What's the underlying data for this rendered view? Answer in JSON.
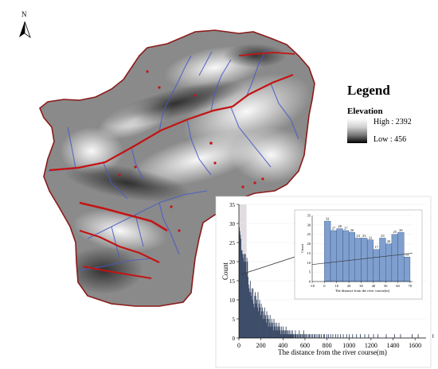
{
  "north_label": "N",
  "legend": {
    "title": "Legend",
    "layer": "Elevation",
    "high": "High : 2392",
    "low": "Low : 456"
  },
  "colors": {
    "boundary": "#8b1a1a",
    "river": "#4a5ac8",
    "points": "#c41414",
    "bars": "#3a4a66",
    "inset_bars": "#7f9fcf"
  },
  "chart_data": [
    {
      "type": "bar",
      "xlabel": "The distance from the river course(m)",
      "ylabel": "Count",
      "xlim": [
        0,
        1700
      ],
      "ylim": [
        0,
        35
      ],
      "xticks": [
        0,
        200,
        400,
        600,
        800,
        1000,
        1200,
        1400,
        1600
      ],
      "yticks": [
        0,
        5,
        10,
        15,
        20,
        25,
        30,
        35
      ],
      "bin_width": 5,
      "values": [
        29,
        28,
        27,
        26,
        23,
        23,
        22,
        21,
        22,
        20,
        22,
        22,
        20,
        17,
        21,
        20,
        16,
        14,
        13,
        12,
        15,
        12,
        11,
        13,
        10,
        13,
        9,
        8,
        11,
        12,
        11,
        9,
        10,
        8,
        12,
        7,
        9,
        10,
        8,
        6,
        9,
        7,
        8,
        5,
        7,
        6,
        8,
        5,
        6,
        4,
        7,
        5,
        6,
        3,
        5,
        4,
        6,
        3,
        4,
        5,
        3,
        4,
        2,
        5,
        3,
        4,
        3,
        2,
        4,
        3,
        2,
        3,
        4,
        2,
        3,
        1,
        2,
        3,
        2,
        1,
        3,
        2,
        2,
        1,
        2,
        3,
        1,
        2,
        1,
        2,
        1,
        2,
        1,
        1,
        2,
        1,
        1,
        2,
        1,
        1,
        0,
        1,
        2,
        1,
        0,
        1,
        1,
        0,
        1,
        2,
        0,
        1,
        1,
        0,
        1,
        0,
        1,
        2,
        0,
        1,
        0,
        1,
        1,
        0,
        0,
        1,
        0,
        1,
        1,
        0,
        0,
        1,
        0,
        1,
        0,
        0,
        1,
        0,
        1,
        0,
        0,
        1,
        0,
        0,
        1,
        0,
        1,
        0,
        0,
        1,
        0,
        0,
        0,
        1,
        0,
        1,
        0,
        0,
        0,
        1,
        0,
        0,
        1,
        0,
        0,
        0,
        1,
        0,
        0,
        0,
        1,
        0,
        0,
        0,
        0,
        1,
        0,
        0,
        0,
        1,
        0,
        0,
        0,
        0,
        1,
        0,
        0,
        0,
        0,
        1,
        0,
        0,
        0,
        0,
        0,
        1,
        0,
        0,
        0,
        0,
        1,
        0,
        0,
        0,
        0,
        0,
        1,
        0,
        0,
        0,
        0,
        0,
        0,
        1,
        0,
        0,
        0,
        0,
        0,
        0,
        1,
        0,
        0,
        0,
        0,
        0,
        0,
        0,
        1,
        0,
        0,
        0,
        0,
        0,
        0,
        1,
        0,
        0,
        0,
        0,
        0,
        0,
        0,
        0,
        1,
        0,
        0,
        0,
        0,
        0,
        0,
        0,
        1,
        0,
        0,
        0,
        0,
        0,
        0,
        0,
        0,
        0,
        0,
        0,
        0,
        0,
        0,
        1,
        0,
        0,
        0,
        0,
        0,
        0,
        0,
        0,
        0,
        0,
        0,
        0,
        0,
        0,
        1,
        0,
        0,
        0,
        0,
        0,
        0,
        0,
        0,
        0,
        0,
        1,
        0,
        0,
        0,
        0,
        0,
        0,
        0,
        0,
        0,
        0,
        0,
        0,
        0,
        0,
        0,
        0,
        0,
        0,
        0,
        0,
        1,
        0,
        0,
        0,
        0,
        0,
        0,
        0,
        0,
        0,
        0,
        1,
        0,
        0,
        0,
        0,
        0,
        0,
        0,
        0,
        0,
        0,
        0,
        0,
        0,
        0,
        0,
        0,
        0,
        0,
        0,
        0,
        0,
        0,
        0,
        0,
        0,
        0,
        1,
        0,
        0,
        0,
        0,
        0,
        0,
        0,
        0,
        0,
        0,
        0,
        0,
        0,
        1
      ]
    },
    {
      "type": "bar",
      "xlabel": "The distance from the river course(m)",
      "ylabel": "Count",
      "xlim": [
        -10,
        72
      ],
      "ylim": [
        0,
        35
      ],
      "xticks": [
        -10,
        0,
        10,
        20,
        30,
        40,
        50,
        60,
        70
      ],
      "yticks": [
        0,
        5,
        10,
        15,
        20,
        25,
        30,
        35
      ],
      "bin_edges": [
        0,
        5,
        10,
        15,
        20,
        25,
        30,
        35,
        40,
        45,
        50,
        55,
        60,
        65,
        70
      ],
      "values": [
        32,
        27,
        28,
        27,
        26,
        23,
        23,
        22,
        17,
        23,
        20,
        25,
        26,
        13
      ],
      "value_labels": [
        "32",
        "27",
        "28",
        "27",
        "26",
        "23",
        "23",
        "22",
        "17",
        "23",
        "20",
        "25",
        "26",
        "13"
      ],
      "trend_line": {
        "x": [
          -10,
          72
        ],
        "y": [
          9,
          15
        ]
      }
    }
  ]
}
